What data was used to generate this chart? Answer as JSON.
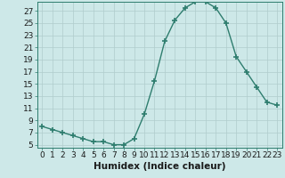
{
  "x": [
    0,
    1,
    2,
    3,
    4,
    5,
    6,
    7,
    8,
    9,
    10,
    11,
    12,
    13,
    14,
    15,
    16,
    17,
    18,
    19,
    20,
    21,
    22,
    23
  ],
  "y": [
    8,
    7.5,
    7,
    6.5,
    6,
    5.5,
    5.5,
    5,
    5,
    6,
    10,
    15.5,
    22,
    25.5,
    27.5,
    28.5,
    28.5,
    27.5,
    25,
    19.5,
    17,
    14.5,
    12,
    11.5
  ],
  "line_color": "#2e7d6e",
  "marker": "+",
  "marker_size": 4,
  "linewidth": 1.0,
  "xlabel": "Humidex (Indice chaleur)",
  "ylabel": "",
  "title": "",
  "xlim": [
    -0.5,
    23.5
  ],
  "ylim": [
    4.5,
    28.5
  ],
  "yticks": [
    5,
    7,
    9,
    11,
    13,
    15,
    17,
    19,
    21,
    23,
    25,
    27
  ],
  "xticks": [
    0,
    1,
    2,
    3,
    4,
    5,
    6,
    7,
    8,
    9,
    10,
    11,
    12,
    13,
    14,
    15,
    16,
    17,
    18,
    19,
    20,
    21,
    22,
    23
  ],
  "xtick_labels": [
    "0",
    "1",
    "2",
    "3",
    "4",
    "5",
    "6",
    "7",
    "8",
    "9",
    "10",
    "11",
    "12",
    "13",
    "14",
    "15",
    "16",
    "17",
    "18",
    "19",
    "20",
    "21",
    "22",
    "23"
  ],
  "background_color": "#cde8e8",
  "grid_color": "#b0cccc",
  "tick_label_fontsize": 6.5,
  "xlabel_fontsize": 7.5
}
